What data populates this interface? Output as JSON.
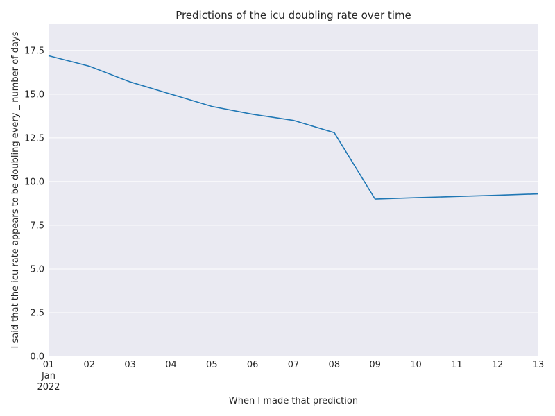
{
  "chart_data": {
    "type": "line",
    "title": "Predictions of the icu doubling rate over time",
    "xlabel": "When I made that prediction",
    "ylabel": "I said that the icu rate appears to be doubling every _ number of days",
    "x": [
      "2022-01-01",
      "2022-01-02",
      "2022-01-03",
      "2022-01-04",
      "2022-01-05",
      "2022-01-06",
      "2022-01-07",
      "2022-01-08",
      "2022-01-09",
      "2022-01-10",
      "2022-01-11",
      "2022-01-12",
      "2022-01-13"
    ],
    "x_tick_labels": [
      "01",
      "02",
      "03",
      "04",
      "05",
      "06",
      "07",
      "08",
      "09",
      "10",
      "11",
      "12",
      "13"
    ],
    "x_tick_sublabels": [
      "Jan",
      "2022"
    ],
    "series": [
      {
        "values": [
          17.2,
          16.6,
          15.7,
          15.0,
          14.3,
          13.85,
          13.5,
          12.8,
          9.0,
          9.08,
          9.15,
          9.22,
          9.3
        ],
        "color": "#1f77b4"
      }
    ],
    "ylim": [
      0,
      19
    ],
    "y_ticks": [
      0.0,
      2.5,
      5.0,
      7.5,
      10.0,
      12.5,
      15.0,
      17.5
    ],
    "y_tick_labels": [
      "0.0",
      "2.5",
      "5.0",
      "7.5",
      "10.0",
      "12.5",
      "15.0",
      "17.5"
    ],
    "grid": true,
    "background": "#eaeaf2",
    "gridline_color": "#ffffff"
  }
}
